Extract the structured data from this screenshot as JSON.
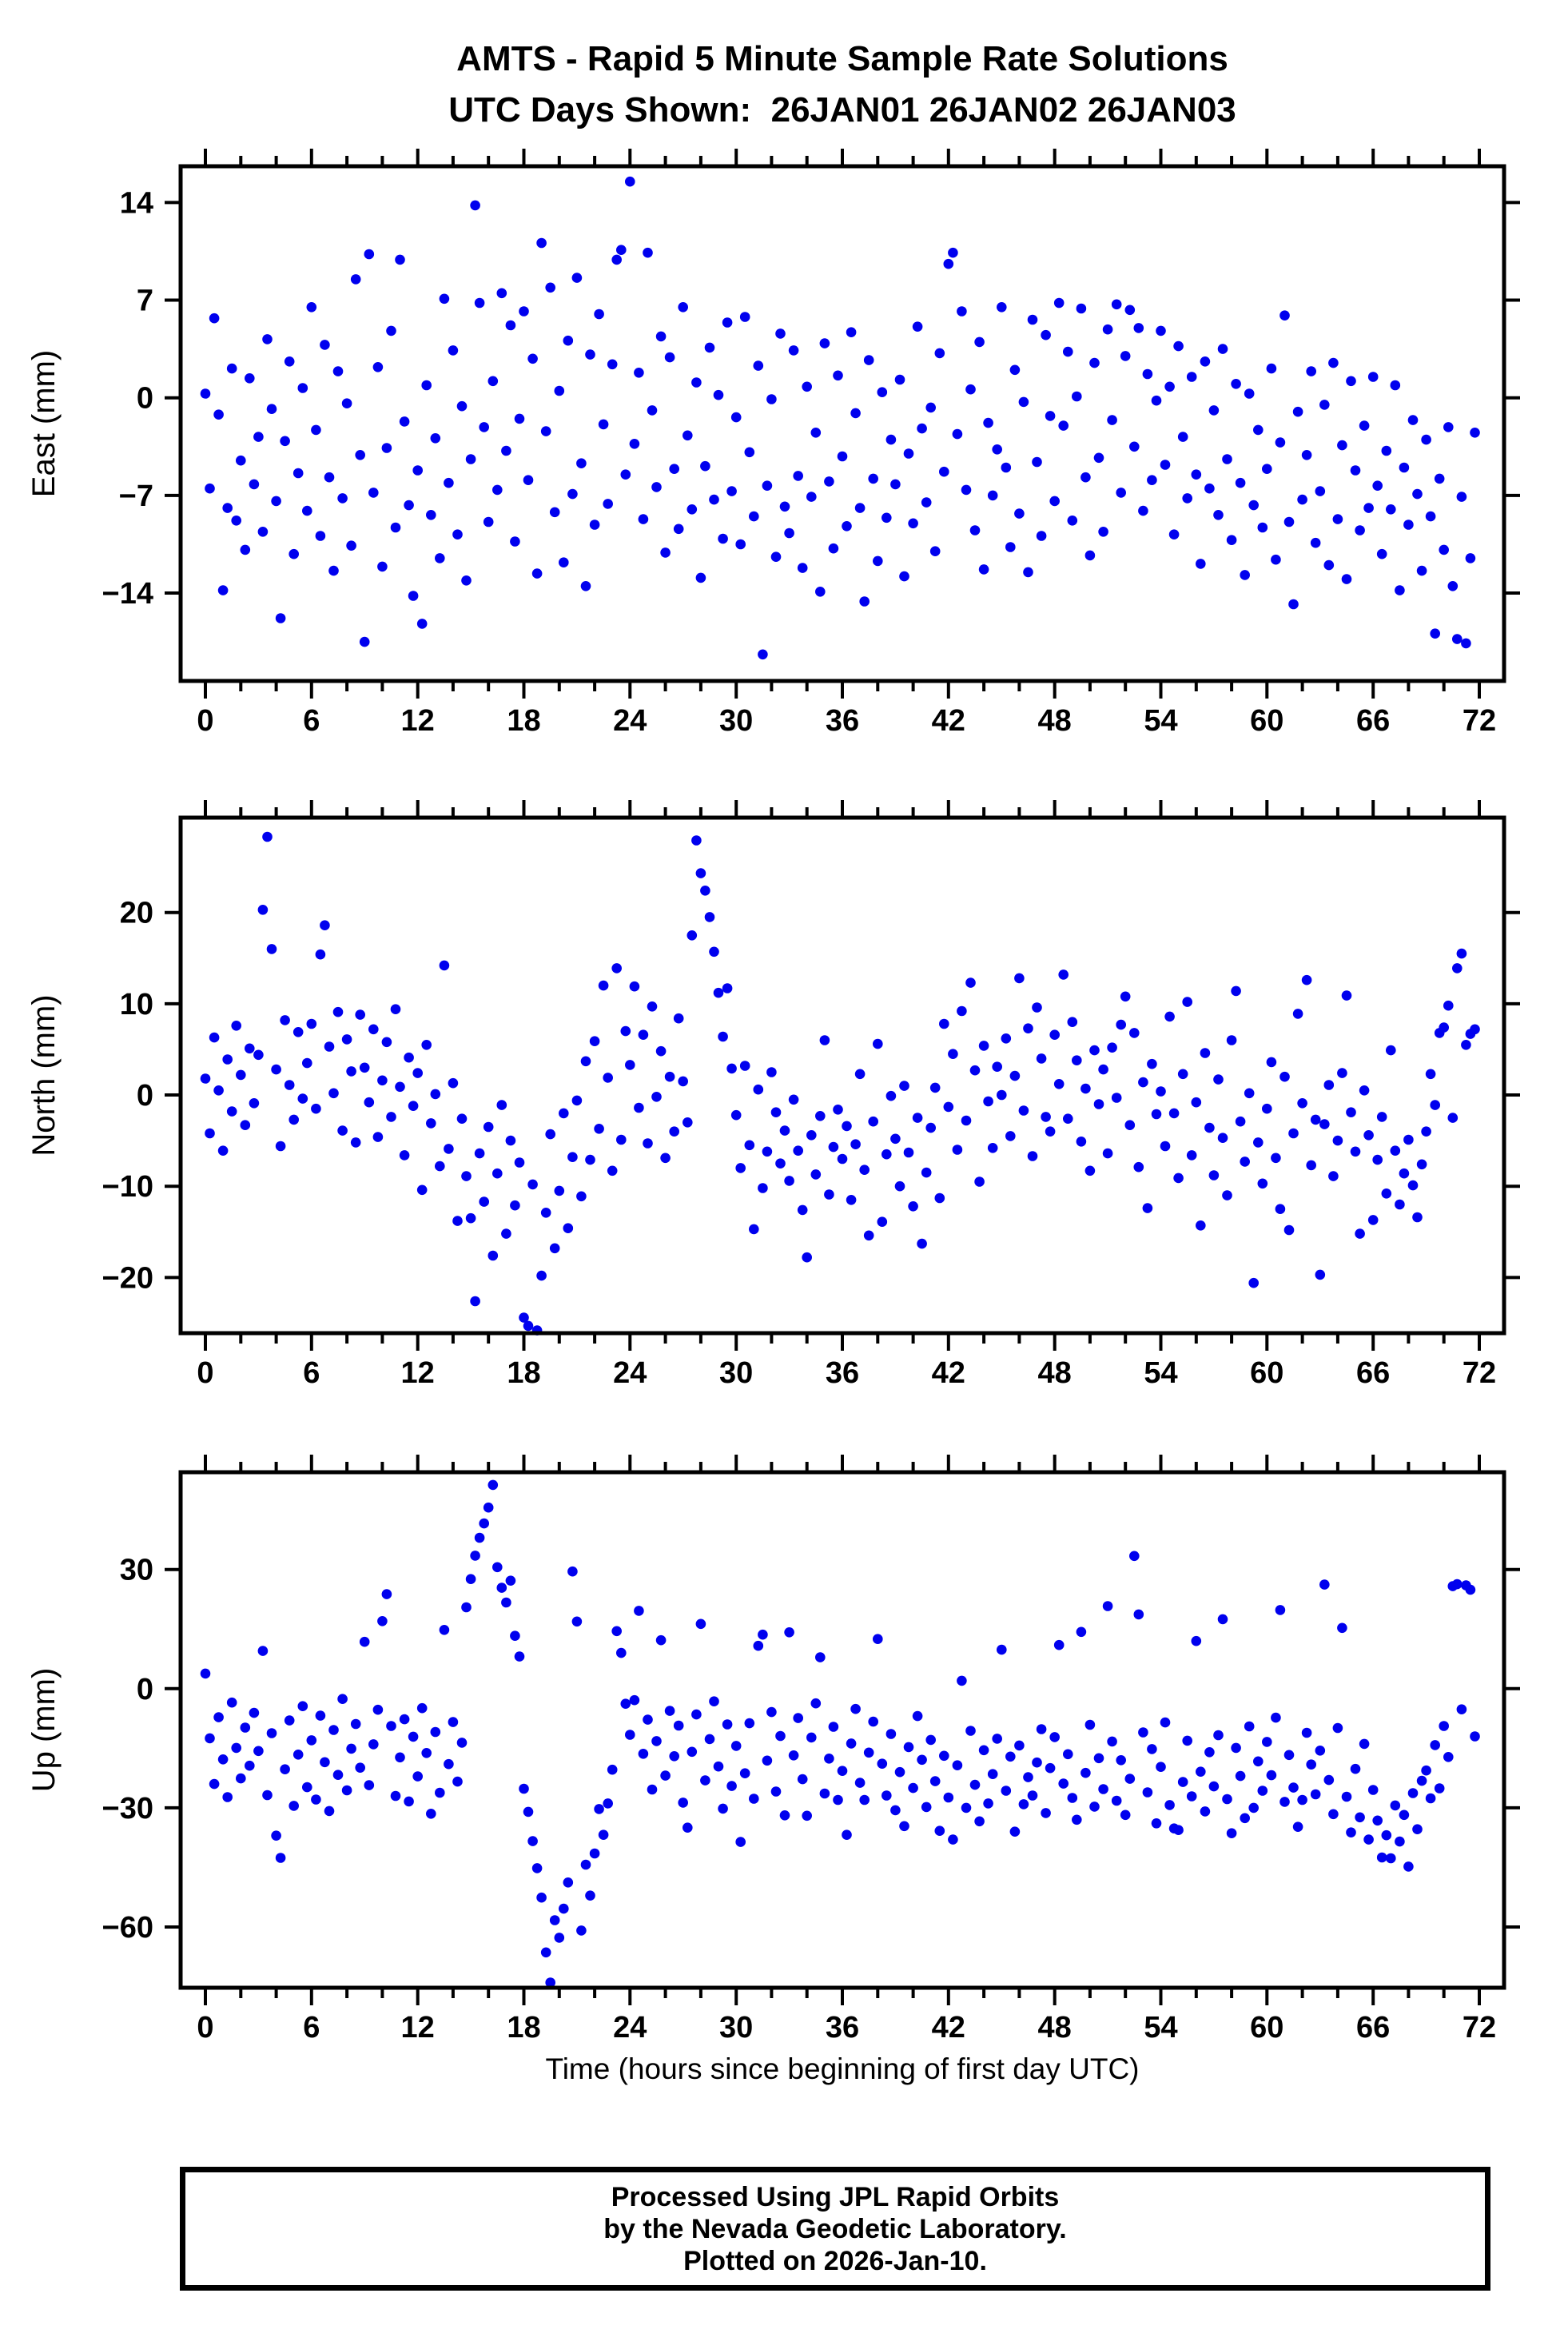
{
  "chart_data": {
    "type": "scatter",
    "title": "AMTS - Rapid 5 Minute Sample Rate Solutions",
    "subtitle": "UTC Days Shown:  26JAN01 26JAN02 26JAN03",
    "xlabel": "Time (hours since beginning of first day UTC)",
    "footer_lines": [
      "Processed Using JPL Rapid Orbits",
      "by the Nevada Geodetic Laboratory.",
      "Plotted on 2026-Jan-10."
    ],
    "background": "#FFFFFF",
    "frame_color": "#000000",
    "marker": {
      "shape": "circle",
      "radius_px": 6.3,
      "color": "#0000EE"
    },
    "xlim": [
      -1.4,
      73.4
    ],
    "xticks_major": [
      0,
      6,
      12,
      18,
      24,
      30,
      36,
      42,
      48,
      54,
      60,
      66,
      72
    ],
    "xtick_minor_step": 2,
    "sample_interval_hours": 0.25,
    "legend": "none",
    "grid": "off",
    "panels": [
      {
        "name": "east",
        "ylabel": "East (mm)",
        "ylim": [
          -20.3,
          16.6
        ],
        "yticks": [
          14,
          7,
          0,
          -7,
          -14
        ],
        "t_start": 0,
        "dt": 0.25,
        "values": [
          0.3,
          -6.5,
          5.7,
          -1.2,
          -13.8,
          -7.9,
          2.1,
          -8.8,
          -4.5,
          -10.9,
          1.4,
          -6.2,
          -2.8,
          -9.6,
          4.2,
          -0.8,
          -7.4,
          -15.8,
          -3.1,
          2.6,
          -11.2,
          -5.4,
          0.7,
          -8.1,
          6.5,
          -2.3,
          -9.9,
          3.8,
          -5.7,
          -12.4,
          1.9,
          -7.2,
          -0.4,
          -10.6,
          8.5,
          -4.1,
          -17.5,
          10.3,
          -6.8,
          2.2,
          -12.1,
          -3.6,
          4.8,
          -9.3,
          9.9,
          -1.7,
          -7.7,
          -14.2,
          -5.2,
          -16.2,
          0.9,
          -8.4,
          -2.9,
          -11.5,
          7.1,
          -6.1,
          3.4,
          -9.8,
          -0.6,
          -13.1,
          -4.4,
          13.8,
          6.8,
          -2.1,
          -8.9,
          1.2,
          -6.6,
          7.5,
          -3.8,
          5.2,
          -10.3,
          -1.5,
          6.2,
          -5.9,
          2.8,
          -12.6,
          11.1,
          -2.4,
          7.9,
          -8.2,
          0.5,
          -11.8,
          4.1,
          -6.9,
          8.6,
          -4.7,
          -13.5,
          3.1,
          -9.1,
          6.0,
          -1.9,
          -7.6,
          2.4,
          9.9,
          10.6,
          -5.5,
          15.5,
          -3.3,
          1.8,
          -8.7,
          10.4,
          -0.9,
          -6.4,
          4.4,
          -11.1,
          2.9,
          -5.1,
          -9.4,
          6.5,
          -2.7,
          -8.0,
          1.1,
          -12.9,
          -4.9,
          3.6,
          -7.3,
          0.2,
          -10.1,
          5.4,
          -6.7,
          -1.4,
          -10.5,
          5.8,
          -3.9,
          -8.5,
          2.3,
          -18.4,
          -6.3,
          -0.1,
          -11.4,
          4.6,
          -7.8,
          -9.7,
          3.4,
          -5.6,
          -12.2,
          0.8,
          -7.1,
          -2.5,
          -13.9,
          3.9,
          -6.0,
          -10.8,
          1.6,
          -4.2,
          -9.2,
          4.7,
          -1.1,
          -7.9,
          -14.6,
          2.7,
          -5.8,
          -11.7,
          0.4,
          -8.6,
          -3.0,
          -6.2,
          1.3,
          -12.8,
          -4.0,
          -9.0,
          5.1,
          -2.2,
          -7.5,
          -0.7,
          -11.0,
          3.2,
          -5.3,
          9.6,
          10.4,
          -2.6,
          6.2,
          -6.6,
          0.6,
          -9.5,
          4.0,
          -12.3,
          -1.8,
          -7.0,
          -3.7,
          6.5,
          -5.0,
          -10.7,
          2.0,
          -8.3,
          -0.3,
          -12.5,
          5.6,
          -4.6,
          -9.9,
          4.5,
          -1.3,
          -7.4,
          6.8,
          -2.0,
          3.3,
          -8.8,
          0.1,
          6.4,
          -5.7,
          -11.3,
          2.5,
          -4.3,
          -9.6,
          4.9,
          -1.6,
          6.7,
          -6.8,
          3.0,
          6.3,
          -3.5,
          5.0,
          -8.1,
          1.7,
          -5.9,
          -0.2,
          4.8,
          -4.8,
          0.8,
          -9.8,
          3.7,
          -2.8,
          -7.2,
          1.5,
          -5.5,
          -11.9,
          2.6,
          -6.5,
          -0.9,
          -8.4,
          3.5,
          -4.4,
          -10.2,
          1.0,
          -6.1,
          -12.7,
          0.3,
          -7.7,
          -2.3,
          -9.3,
          -5.1,
          2.1,
          -11.6,
          -3.2,
          5.9,
          -8.9,
          -14.8,
          -1.0,
          -7.3,
          -4.1,
          1.9,
          -10.4,
          -6.7,
          -0.5,
          -12.0,
          2.5,
          -8.7,
          -3.4,
          -13.0,
          1.2,
          -5.2,
          -9.5,
          -2.0,
          -7.9,
          1.5,
          -6.3,
          -11.2,
          -3.8,
          -8.0,
          0.9,
          -13.8,
          -5.0,
          -9.1,
          -1.6,
          -6.9,
          -12.4,
          -3.0,
          -8.5,
          -16.9,
          -5.8,
          -10.9,
          -2.1,
          -13.5,
          -17.3,
          -7.1,
          -17.6,
          -11.5,
          -2.5
        ]
      },
      {
        "name": "north",
        "ylabel": "North (mm)",
        "ylim": [
          -26.1,
          30.4
        ],
        "yticks": [
          20,
          10,
          0,
          -10,
          -20
        ],
        "t_start": 0,
        "dt": 0.25,
        "values": [
          1.8,
          -4.2,
          6.3,
          0.5,
          -6.1,
          3.9,
          -1.8,
          7.6,
          2.2,
          -3.3,
          5.1,
          -0.9,
          4.4,
          20.3,
          28.3,
          16.0,
          2.8,
          -5.6,
          8.2,
          1.1,
          -2.7,
          6.9,
          -0.4,
          3.5,
          7.8,
          -1.5,
          15.4,
          18.6,
          5.3,
          0.2,
          9.1,
          -3.9,
          6.1,
          2.6,
          -5.2,
          8.8,
          3.0,
          -0.8,
          7.2,
          -4.6,
          1.6,
          5.8,
          -2.4,
          9.4,
          0.9,
          -6.6,
          4.1,
          -1.2,
          2.4,
          -10.4,
          5.5,
          -3.1,
          0.1,
          -7.8,
          14.2,
          -5.9,
          1.3,
          -13.8,
          -2.6,
          -8.9,
          -13.5,
          -22.6,
          -6.4,
          -11.7,
          -3.5,
          -17.6,
          -8.6,
          -1.1,
          -15.2,
          -5.0,
          -12.1,
          -7.4,
          -24.4,
          -25.3,
          -9.8,
          -25.8,
          -19.8,
          -12.9,
          -4.3,
          -16.8,
          -10.5,
          -2.0,
          -14.6,
          -6.8,
          -0.6,
          -11.1,
          3.7,
          -7.1,
          5.9,
          -3.7,
          12.0,
          1.9,
          -8.3,
          13.9,
          -4.9,
          7.0,
          3.3,
          11.9,
          -1.4,
          6.6,
          -5.3,
          9.7,
          -0.2,
          4.8,
          -6.9,
          2.0,
          -4.0,
          8.4,
          1.5,
          -3.0,
          17.5,
          27.9,
          24.3,
          22.4,
          19.5,
          15.7,
          11.2,
          6.4,
          11.7,
          2.9,
          -2.2,
          -8.0,
          3.2,
          -5.5,
          -14.7,
          0.6,
          -10.2,
          -6.2,
          2.5,
          -1.9,
          -7.5,
          -3.9,
          -9.4,
          -0.5,
          -6.1,
          -12.6,
          -17.8,
          -4.4,
          -8.7,
          -2.3,
          6.0,
          -10.9,
          -5.7,
          -1.6,
          -7.0,
          -3.4,
          -11.5,
          -5.4,
          2.3,
          -8.2,
          -15.4,
          -2.9,
          5.6,
          -13.9,
          -6.5,
          -0.1,
          -4.8,
          -10.0,
          1.0,
          -6.3,
          -12.2,
          -2.5,
          -16.3,
          -8.5,
          -3.6,
          0.8,
          -11.3,
          7.8,
          -1.3,
          4.5,
          -6.0,
          9.2,
          -2.8,
          12.3,
          2.7,
          -9.5,
          5.4,
          -0.7,
          -5.8,
          3.1,
          0.0,
          6.2,
          -4.5,
          2.1,
          12.8,
          -1.7,
          7.3,
          -6.7,
          9.6,
          4.0,
          -2.4,
          -4.0,
          6.6,
          1.2,
          13.2,
          -2.6,
          8.0,
          3.8,
          -5.1,
          0.7,
          -8.3,
          4.9,
          -1.0,
          2.8,
          -6.4,
          5.2,
          -0.3,
          7.7,
          10.8,
          -3.3,
          6.8,
          -7.9,
          1.4,
          -12.4,
          3.4,
          -2.1,
          0.4,
          -5.6,
          8.6,
          -2.0,
          -9.1,
          2.3,
          10.2,
          -6.6,
          -0.8,
          -14.3,
          4.6,
          -3.6,
          -8.8,
          1.7,
          -4.7,
          -11.0,
          6.0,
          11.4,
          -2.9,
          -7.3,
          0.2,
          -20.6,
          -5.2,
          -9.7,
          -1.5,
          3.6,
          -6.9,
          -12.5,
          2.0,
          -14.8,
          -4.2,
          8.9,
          -0.9,
          12.6,
          -7.7,
          -2.7,
          -19.7,
          -3.2,
          1.1,
          -8.9,
          -5.0,
          2.4,
          10.9,
          -1.9,
          -6.2,
          -15.2,
          0.5,
          -4.4,
          -13.7,
          -7.1,
          -2.4,
          -10.8,
          4.9,
          -6.1,
          -12.0,
          -8.6,
          -4.9,
          -9.9,
          -13.4,
          -7.6,
          -4.0,
          2.3,
          -1.1,
          6.8,
          7.4,
          9.8,
          -2.5,
          13.9,
          15.5,
          5.5,
          6.7,
          7.2
        ]
      },
      {
        "name": "up",
        "ylabel": "Up (mm)",
        "ylim": [
          -75.3,
          54.5
        ],
        "yticks": [
          30,
          0,
          -30,
          -60
        ],
        "t_start": 0,
        "dt": 0.25,
        "values": [
          3.8,
          -12.5,
          -24.0,
          -7.2,
          -17.8,
          -27.3,
          -3.5,
          -14.9,
          -22.6,
          -9.8,
          -19.4,
          -6.1,
          -15.7,
          9.5,
          -26.8,
          -11.2,
          -37.0,
          -42.6,
          -20.3,
          -8.0,
          -29.5,
          -16.6,
          -4.4,
          -24.8,
          -13.0,
          -27.9,
          -6.8,
          -18.5,
          -30.8,
          -10.4,
          -21.7,
          -2.6,
          -25.6,
          -15.1,
          -8.9,
          -19.9,
          11.8,
          -24.3,
          -14.0,
          -5.3,
          17.0,
          23.8,
          -9.4,
          -27.0,
          -17.3,
          -7.7,
          -28.4,
          -12.1,
          -22.1,
          -4.9,
          -16.2,
          -31.5,
          -10.9,
          -26.2,
          14.8,
          -19.0,
          -8.4,
          -23.4,
          -13.6,
          20.5,
          27.6,
          33.5,
          38.0,
          41.6,
          45.6,
          51.3,
          30.6,
          25.4,
          21.7,
          27.2,
          13.3,
          8.1,
          -25.2,
          -31.0,
          -38.4,
          -45.2,
          -52.6,
          -66.4,
          -74.0,
          -58.3,
          -62.7,
          -55.4,
          -48.8,
          29.5,
          16.9,
          -60.9,
          -44.3,
          -52.1,
          -41.5,
          -30.3,
          -36.8,
          -28.9,
          -20.4,
          14.5,
          9.0,
          -3.8,
          -11.6,
          -2.9,
          19.6,
          -16.4,
          -7.8,
          -25.4,
          -13.2,
          12.2,
          -21.9,
          -5.6,
          -17.0,
          -9.3,
          -28.7,
          -35.0,
          -15.9,
          -6.5,
          16.3,
          -23.1,
          -12.7,
          -3.2,
          -19.6,
          -30.2,
          -9.0,
          -24.5,
          -14.4,
          -38.6,
          -21.3,
          -8.7,
          -27.7,
          10.8,
          13.6,
          -18.1,
          -5.9,
          -25.9,
          -11.9,
          -31.9,
          14.2,
          -16.8,
          -7.4,
          -22.8,
          -32.0,
          -12.3,
          -3.7,
          7.9,
          -26.4,
          -17.6,
          -9.6,
          -28.0,
          -20.7,
          -36.8,
          -13.8,
          -5.1,
          -23.7,
          -28.0,
          -16.1,
          -8.3,
          12.5,
          -18.9,
          -26.9,
          -11.4,
          -30.6,
          -21.0,
          -34.6,
          -14.7,
          -25.0,
          -6.9,
          -17.9,
          -29.8,
          -12.9,
          -23.3,
          -35.8,
          -16.9,
          -27.4,
          -38.0,
          -19.3,
          2.0,
          -30.0,
          -10.6,
          -24.2,
          -33.4,
          -15.5,
          -28.9,
          -21.5,
          -12.6,
          9.8,
          -25.7,
          -17.1,
          -36.0,
          -14.3,
          -29.1,
          -22.3,
          -26.9,
          -18.6,
          -10.2,
          -31.3,
          -20.0,
          -12.2,
          11.0,
          -23.9,
          -16.5,
          -27.5,
          -33.0,
          14.3,
          -21.2,
          -9.1,
          -29.7,
          -17.5,
          -25.3,
          20.8,
          -13.3,
          -28.2,
          -18.0,
          -31.8,
          -22.7,
          33.4,
          18.7,
          -11.0,
          -26.1,
          -15.2,
          -33.9,
          -19.7,
          -8.5,
          -29.3,
          -35.2,
          -35.6,
          -23.5,
          -13.1,
          -27.1,
          12.0,
          -20.9,
          -30.9,
          -16.0,
          -24.6,
          -11.7,
          17.5,
          -27.8,
          -36.4,
          -14.9,
          -22.0,
          -32.6,
          -9.5,
          -30.0,
          -18.3,
          -25.7,
          -13.4,
          -21.8,
          -7.3,
          19.8,
          -28.5,
          -16.7,
          -24.9,
          -34.8,
          -28.0,
          -11.1,
          -19.1,
          -26.6,
          -15.6,
          26.2,
          -23.0,
          -31.6,
          -9.9,
          15.3,
          -27.2,
          -36.2,
          -20.2,
          -32.4,
          -13.9,
          -38.0,
          -25.5,
          -33.2,
          -42.5,
          -36.9,
          -42.7,
          -29.4,
          -38.5,
          -31.8,
          -44.8,
          -26.3,
          -35.4,
          -23.2,
          -20.6,
          -27.6,
          -14.2,
          -25.1,
          -9.4,
          -17.2,
          25.8,
          26.3,
          -5.2,
          26.0,
          24.9,
          -12.0
        ]
      }
    ]
  }
}
